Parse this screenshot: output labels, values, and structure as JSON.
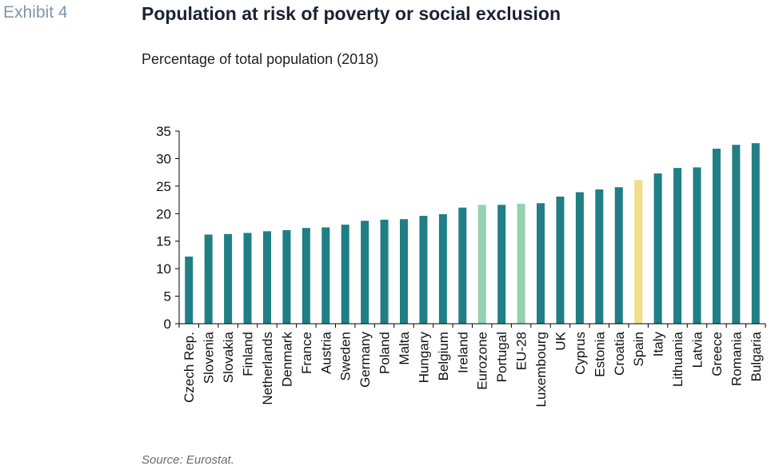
{
  "header": {
    "exhibit": "Exhibit 4",
    "title": "Population at risk of poverty or social exclusion",
    "subtitle": "Percentage of total population (2018)"
  },
  "footer": {
    "source": "Source: Eurostat."
  },
  "colors": {
    "default": "#1f7f84",
    "aggregate": "#94d2b0",
    "highlight": "#f0df88",
    "axis": "#000000"
  },
  "chart_data": {
    "type": "bar",
    "title": "Population at risk of poverty or social exclusion",
    "subtitle": "Percentage of total population (2018)",
    "xlabel": "",
    "ylabel": "",
    "ylim": [
      0,
      35
    ],
    "yticks": [
      0,
      5,
      10,
      15,
      20,
      25,
      30,
      35
    ],
    "grid": false,
    "legend": "none",
    "categories": [
      "Czech Rep.",
      "Slovenia",
      "Slovakia",
      "Finland",
      "Netherlands",
      "Denmark",
      "France",
      "Austria",
      "Sweden",
      "Germany",
      "Poland",
      "Malta",
      "Hungary",
      "Belgium",
      "Ireland",
      "Eurozone",
      "Portugal",
      "EU-28",
      "Luxembourg",
      "UK",
      "Cyprus",
      "Estonia",
      "Croatia",
      "Spain",
      "Italy",
      "Lithuania",
      "Latvia",
      "Greece",
      "Romania",
      "Bulgaria"
    ],
    "values": [
      12.2,
      16.2,
      16.3,
      16.5,
      16.8,
      17.0,
      17.4,
      17.5,
      18.0,
      18.7,
      18.9,
      19.0,
      19.6,
      19.9,
      21.1,
      21.6,
      21.6,
      21.8,
      21.9,
      23.1,
      23.9,
      24.4,
      24.8,
      26.1,
      27.3,
      28.3,
      28.4,
      31.8,
      32.5,
      32.8
    ],
    "bar_kind": [
      "country",
      "country",
      "country",
      "country",
      "country",
      "country",
      "country",
      "country",
      "country",
      "country",
      "country",
      "country",
      "country",
      "country",
      "country",
      "aggregate",
      "country",
      "aggregate",
      "country",
      "country",
      "country",
      "country",
      "country",
      "highlight",
      "country",
      "country",
      "country",
      "country",
      "country",
      "country"
    ]
  }
}
